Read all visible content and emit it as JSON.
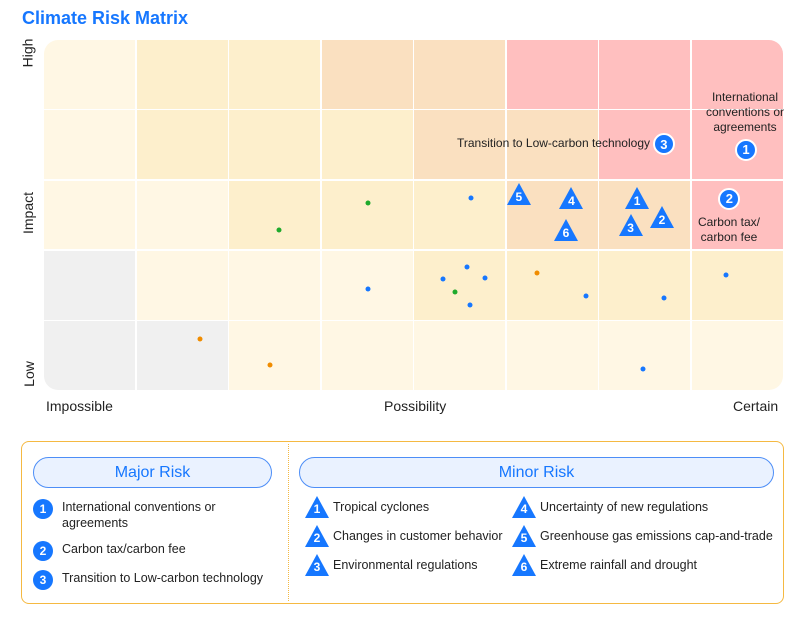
{
  "title": "Climate Risk Matrix",
  "axes": {
    "y_high": "High",
    "y_mid": "Impact",
    "y_low": "Low",
    "x_low": "Impossible",
    "x_mid": "Possibility",
    "x_high": "Certain"
  },
  "colors": {
    "accent": "#1677ff",
    "green": "#1faa2c",
    "orange": "#f08c00",
    "cream": "#fff7e4",
    "yellow": "#fdefcc",
    "peach": "#fae0c0",
    "pink": "#ffbfbf",
    "gray": "#f0f0f0"
  },
  "chart_data": {
    "type": "scatter",
    "title": "Climate Risk Matrix",
    "xlabel": "Possibility",
    "ylabel": "Impact",
    "xlim": [
      0,
      8
    ],
    "ylim": [
      0,
      5
    ],
    "cell_levels": [
      [
        "cream",
        "yellow",
        "yellow",
        "peach",
        "peach",
        "pink",
        "pink",
        "pink"
      ],
      [
        "cream",
        "yellow",
        "yellow",
        "yellow",
        "peach",
        "peach",
        "pink",
        "pink"
      ],
      [
        "cream",
        "cream",
        "yellow",
        "yellow",
        "yellow",
        "peach",
        "peach",
        "pink"
      ],
      [
        "gray",
        "cream",
        "cream",
        "cream",
        "yellow",
        "yellow",
        "yellow",
        "yellow"
      ],
      [
        "gray",
        "gray",
        "cream",
        "cream",
        "cream",
        "cream",
        "cream",
        "cream"
      ]
    ],
    "points": [
      {
        "x": 2.54,
        "y": 2.29,
        "color": "green"
      },
      {
        "x": 3.51,
        "y": 2.67,
        "color": "green"
      },
      {
        "x": 4.62,
        "y": 2.74,
        "color": "blue"
      },
      {
        "x": 3.51,
        "y": 1.44,
        "color": "blue"
      },
      {
        "x": 4.58,
        "y": 1.76,
        "color": "blue"
      },
      {
        "x": 4.32,
        "y": 1.59,
        "color": "blue"
      },
      {
        "x": 4.77,
        "y": 1.6,
        "color": "blue"
      },
      {
        "x": 4.45,
        "y": 1.4,
        "color": "green"
      },
      {
        "x": 4.61,
        "y": 1.21,
        "color": "blue"
      },
      {
        "x": 5.34,
        "y": 1.67,
        "color": "orange"
      },
      {
        "x": 5.87,
        "y": 1.34,
        "color": "blue"
      },
      {
        "x": 6.71,
        "y": 1.31,
        "color": "blue"
      },
      {
        "x": 7.38,
        "y": 1.64,
        "color": "blue"
      },
      {
        "x": 1.69,
        "y": 0.73,
        "color": "orange"
      },
      {
        "x": 2.45,
        "y": 0.36,
        "color": "orange"
      },
      {
        "x": 6.48,
        "y": 0.3,
        "color": "blue"
      }
    ],
    "major": [
      {
        "n": "1",
        "x": 7.6,
        "y": 3.43
      },
      {
        "n": "2",
        "x": 7.42,
        "y": 2.73
      },
      {
        "n": "3",
        "x": 6.71,
        "y": 3.51
      }
    ],
    "minor": [
      {
        "n": "5",
        "x": 5.14,
        "y": 2.8
      },
      {
        "n": "4",
        "x": 5.71,
        "y": 2.74
      },
      {
        "n": "6",
        "x": 5.65,
        "y": 2.29
      },
      {
        "n": "1",
        "x": 6.42,
        "y": 2.74
      },
      {
        "n": "3",
        "x": 6.35,
        "y": 2.36
      },
      {
        "n": "2",
        "x": 6.69,
        "y": 2.47
      }
    ],
    "annotations": {
      "major1": "International conventions or agreements",
      "major3": "Transition to Low-carbon technology",
      "major2": "Carbon tax/ carbon fee"
    }
  },
  "legend": {
    "major_title": "Major Risk",
    "minor_title": "Minor Risk",
    "major": [
      {
        "n": "1",
        "label": "International conventions or agreements"
      },
      {
        "n": "2",
        "label": "Carbon tax/carbon fee"
      },
      {
        "n": "3",
        "label": "Transition to Low-carbon technology"
      }
    ],
    "minor": [
      {
        "n": "1",
        "label": "Tropical cyclones"
      },
      {
        "n": "2",
        "label": "Changes in customer behavior"
      },
      {
        "n": "3",
        "label": "Environmental regulations"
      },
      {
        "n": "4",
        "label": "Uncertainty of new regulations"
      },
      {
        "n": "5",
        "label": "Greenhouse gas emissions cap-and-trade"
      },
      {
        "n": "6",
        "label": "Extreme rainfall and drought"
      }
    ]
  }
}
